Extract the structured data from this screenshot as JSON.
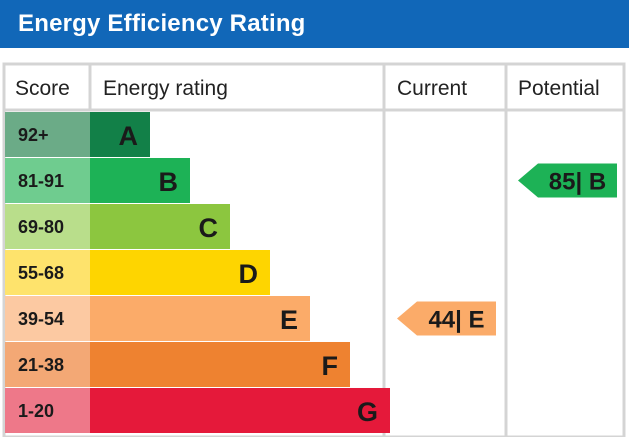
{
  "chart_data": {
    "type": "table",
    "title": "Energy Efficiency Rating",
    "columns": {
      "score": "Score",
      "rating": "Energy rating",
      "current": "Current",
      "potential": "Potential"
    },
    "bands": [
      {
        "score": "92+",
        "letter": "A",
        "color": "#128048",
        "score_color": "#6bab87"
      },
      {
        "score": "81-91",
        "letter": "B",
        "color": "#1db256",
        "score_color": "#6fcc8f"
      },
      {
        "score": "69-80",
        "letter": "C",
        "color": "#8cc63f",
        "score_color": "#b9de8b"
      },
      {
        "score": "55-68",
        "letter": "D",
        "color": "#fed500",
        "score_color": "#fee36c"
      },
      {
        "score": "39-54",
        "letter": "E",
        "color": "#fbab69",
        "score_color": "#fcc9a2"
      },
      {
        "score": "21-38",
        "letter": "F",
        "color": "#ee8230",
        "score_color": "#f3a875"
      },
      {
        "score": "1-20",
        "letter": "G",
        "color": "#e5193a",
        "score_color": "#ee7889"
      }
    ],
    "current": {
      "value": 44,
      "band": "E",
      "label": "44| E",
      "color": "#fbab69"
    },
    "potential": {
      "value": 85,
      "band": "B",
      "label": "85| B",
      "color": "#1db256"
    }
  }
}
